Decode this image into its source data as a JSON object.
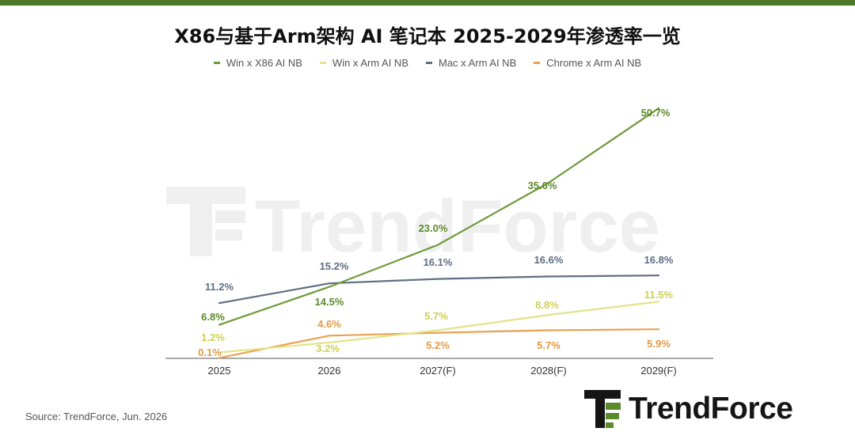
{
  "title": "X86与基于Arm架构 AI 笔记本 2025-2029年渗透率一览",
  "source": "Source: TrendForce, Jun. 2026",
  "brand": "TrendForce",
  "watermark": "TrendForce",
  "colors": {
    "accent_bar": "#4a7a27",
    "axis": "#777777"
  },
  "chart_data": {
    "type": "line",
    "categories": [
      "2025",
      "2026",
      "2027(F)",
      "2028(F)",
      "2029(F)"
    ],
    "ylim": [
      0,
      55
    ],
    "grid": false,
    "legend_position": "top",
    "series": [
      {
        "name": "Win x X86 AI NB",
        "color": "#6e9a3a",
        "label_color": "#5b8a2b",
        "values": [
          6.8,
          14.5,
          23.0,
          35.6,
          50.7
        ],
        "labels": [
          "6.8%",
          "14.5%",
          "23.0%",
          "35.6%",
          "50.7%"
        ]
      },
      {
        "name": "Win x Arm AI NB",
        "color": "#e3e38a",
        "label_color": "#cfcf55",
        "values": [
          1.2,
          3.2,
          5.7,
          8.8,
          11.5
        ],
        "labels": [
          "1.2%",
          "3.2%",
          "5.7%",
          "8.8%",
          "11.5%"
        ]
      },
      {
        "name": "Mac x Arm AI NB",
        "color": "#5f6e85",
        "label_color": "#5f6e85",
        "values": [
          11.2,
          15.2,
          16.1,
          16.6,
          16.8
        ],
        "labels": [
          "11.2%",
          "15.2%",
          "16.1%",
          "16.6%",
          "16.8%"
        ]
      },
      {
        "name": "Chrome x Arm AI NB",
        "color": "#eaa155",
        "label_color": "#e69a45",
        "values": [
          0.1,
          4.6,
          5.2,
          5.7,
          5.9
        ],
        "labels": [
          "0.1%",
          "4.6%",
          "5.2%",
          "5.7%",
          "5.9%"
        ]
      }
    ]
  }
}
